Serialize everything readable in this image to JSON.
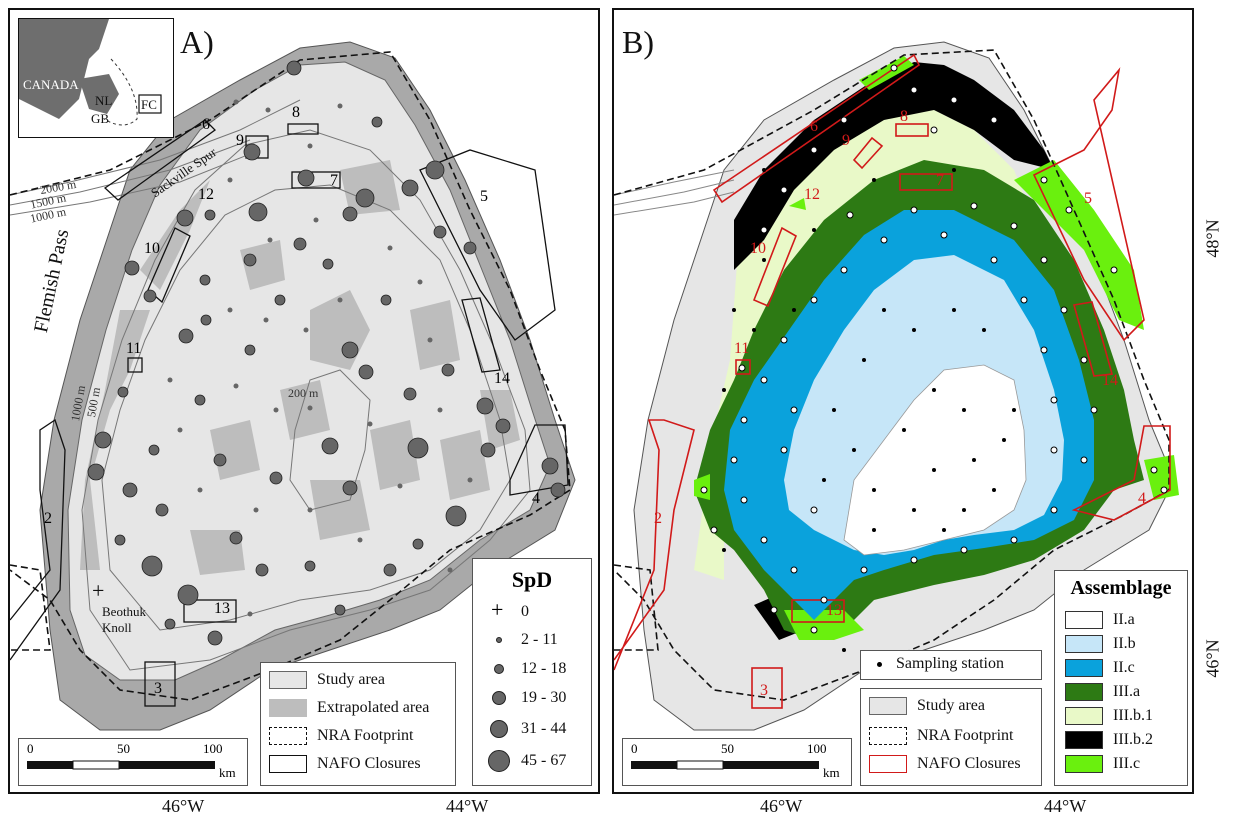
{
  "panel_a": {
    "label": "A)",
    "inset": {
      "canada": "CANADA",
      "nl": "NL",
      "gb": "GB",
      "fc": "FC"
    },
    "place_labels": {
      "flemish_pass": "Flemish Pass",
      "sackville_spur": "Sackville Spur",
      "beothuk_knoll": "Beothuk Knoll"
    },
    "bathymetry": {
      "d2000": "2000 m",
      "d1500": "1500 m",
      "d1000": "1000 m",
      "d1000_b": "1000 m",
      "d500": "500 m",
      "d200": "200 m"
    },
    "closures": [
      "2",
      "3",
      "4",
      "5",
      "6",
      "7",
      "8",
      "9",
      "10",
      "11",
      "12",
      "13",
      "14"
    ],
    "area_legend": {
      "study_area": "Study area",
      "extrapolated_area": "Extrapolated area",
      "nra_footprint": "NRA Footprint",
      "nafo_closures": "NAFO Closures"
    },
    "spd_legend": {
      "title": "SpD",
      "classes": [
        "0",
        "2 - 11",
        "12 - 18",
        "19 - 30",
        "31 - 44",
        "45 - 67"
      ]
    },
    "scale": {
      "ticks": [
        "0",
        "50",
        "100"
      ],
      "unit": "km"
    },
    "lon_label": "46°W",
    "lon_label_2": "44°W"
  },
  "panel_b": {
    "label": "B)",
    "closures": [
      "2",
      "3",
      "4",
      "5",
      "6",
      "7",
      "8",
      "9",
      "10",
      "11",
      "12",
      "13",
      "14"
    ],
    "sampling_legend": "Sampling station",
    "area_legend": {
      "study_area": "Study area",
      "nra_footprint": "NRA Footprint",
      "nafo_closures": "NAFO Closures"
    },
    "assemblage_legend": {
      "title": "Assemblage",
      "items": [
        {
          "label": "II.a",
          "color": "#ffffff"
        },
        {
          "label": "II.b",
          "color": "#c6e6f8"
        },
        {
          "label": "II.c",
          "color": "#0aa2dc"
        },
        {
          "label": "III.a",
          "color": "#2d7a14"
        },
        {
          "label": "III.b.1",
          "color": "#e9f9c8"
        },
        {
          "label": "III.b.2",
          "color": "#000000"
        },
        {
          "label": "III.c",
          "color": "#6af00e"
        }
      ]
    },
    "scale": {
      "ticks": [
        "0",
        "50",
        "100"
      ],
      "unit": "km"
    },
    "lon_label": "46°W",
    "lon_label_2": "44°W",
    "lat_labels": [
      "48°N",
      "46°N"
    ]
  },
  "colors": {
    "study_area": "#e6e6e6",
    "extrapolated_area": "#bdbdbd",
    "outer_halo": "#a9a9a9",
    "nafo_b": "#d11a1a"
  }
}
